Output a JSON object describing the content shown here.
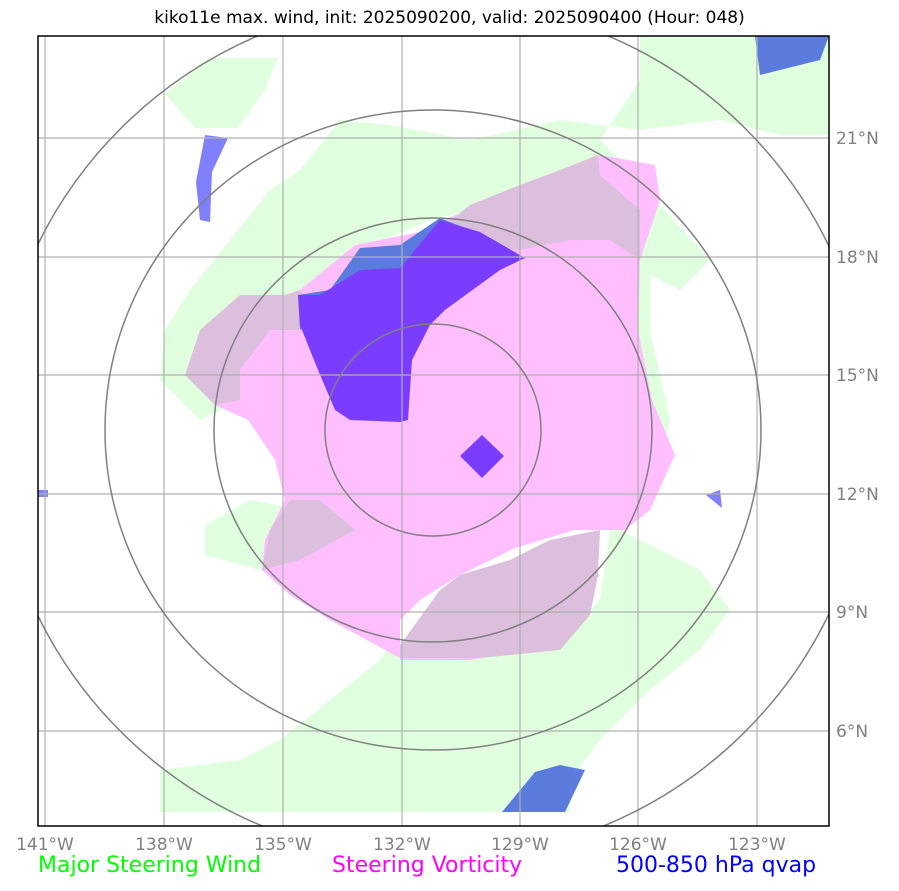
{
  "title": "kiko11e max. wind, init: 2025090200, valid: 2025090400 (Hour: 048)",
  "lon_labels": [
    "141°W",
    "138°W",
    "135°W",
    "132°W",
    "129°W",
    "126°W",
    "123°W"
  ],
  "lat_labels": [
    "21°N",
    "18°N",
    "15°N",
    "12°N",
    "9°N",
    "6°N"
  ],
  "legend": [
    {
      "label": "Major Steering Wind",
      "color": "#00ff00"
    },
    {
      "label": "Steering Vorticity",
      "color": "#ff00ff"
    },
    {
      "label": "500-850 hPa qvap",
      "color": "#0000ff"
    }
  ],
  "colors": {
    "steering_wind_fill": "#dfffdf",
    "vorticity_fill": "#ffbfff",
    "overlap_fill": "#dcbfdc",
    "qvap_fill": "#5b7cdc",
    "qvap_light_fill": "#8080ff",
    "qvap_core_fill": "#7a3cff",
    "ring_stroke": "#808080",
    "grid_stroke": "#b0b0b0"
  }
}
